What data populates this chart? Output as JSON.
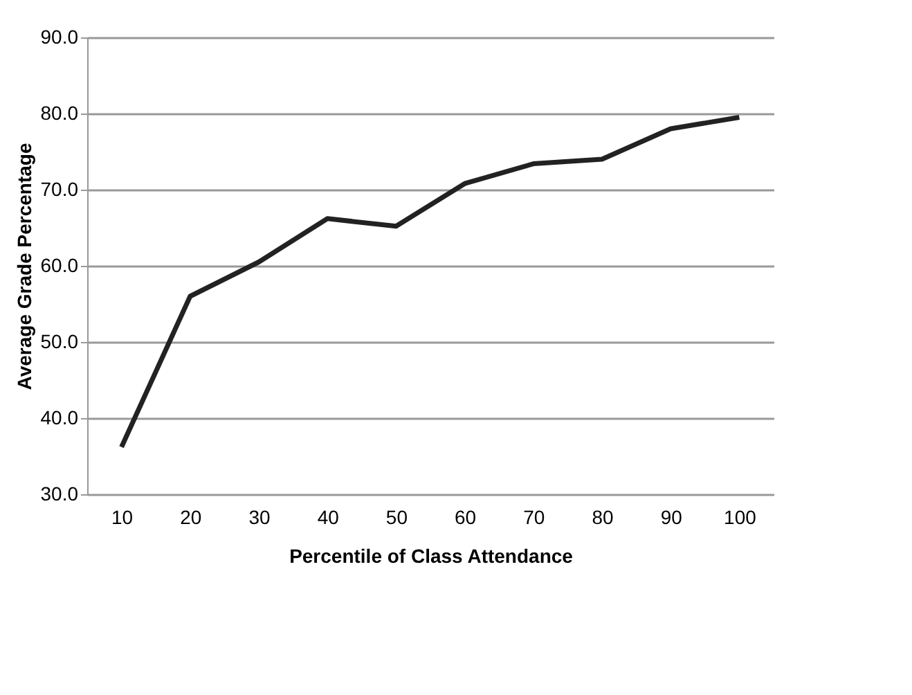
{
  "chart_data": {
    "type": "line",
    "xlabel": "Percentile of Class Attendance",
    "ylabel": "Average Grade Percentage",
    "categories": [
      "10",
      "20",
      "30",
      "40",
      "50",
      "60",
      "70",
      "80",
      "90",
      "100"
    ],
    "values": [
      36.2,
      56.0,
      60.5,
      66.2,
      65.2,
      70.8,
      73.4,
      74.0,
      78.0,
      79.5
    ],
    "color": "#222222",
    "ylim": [
      30,
      90
    ],
    "yticks": [
      {
        "value": 30,
        "label": "30.0"
      },
      {
        "value": 40,
        "label": "40.0"
      },
      {
        "value": 50,
        "label": "50.0"
      },
      {
        "value": 60,
        "label": "60.0"
      },
      {
        "value": 70,
        "label": "70.0"
      },
      {
        "value": 80,
        "label": "80.0"
      },
      {
        "value": 90,
        "label": "90.0"
      }
    ],
    "grid": "y",
    "marker": "none",
    "line_style": "solid"
  }
}
